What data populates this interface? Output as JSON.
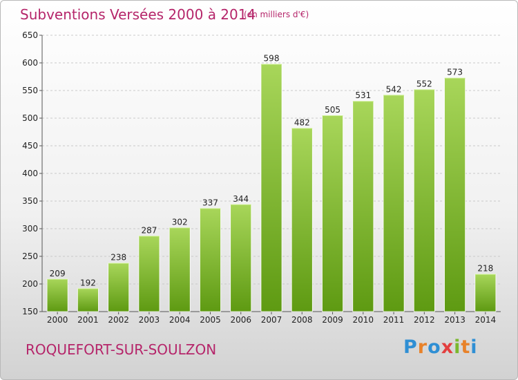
{
  "header": {
    "title": "Subventions Versées 2000 à 2014",
    "unit_note": "(en milliers d'€)"
  },
  "footer": {
    "town": "ROQUEFORT-SUR-SOULZON",
    "logo": {
      "letters": [
        "P",
        "r",
        "o",
        "x",
        "i",
        "t",
        "i"
      ],
      "colors": [
        "#2f8fd4",
        "#e8822a",
        "#2f8fd4",
        "#e33f3f",
        "#7bb82e",
        "#e8822a",
        "#2f8fd4"
      ]
    }
  },
  "chart_data": {
    "type": "bar",
    "title": "Subventions Versées 2000 à 2014",
    "xlabel": "",
    "ylabel": "",
    "categories": [
      "2000",
      "2001",
      "2002",
      "2003",
      "2004",
      "2005",
      "2006",
      "2007",
      "2008",
      "2009",
      "2010",
      "2011",
      "2012",
      "2013",
      "2014"
    ],
    "values": [
      209,
      192,
      238,
      287,
      302,
      337,
      344,
      598,
      482,
      505,
      531,
      542,
      552,
      573,
      218
    ],
    "ylim": [
      150,
      650
    ],
    "yticks": [
      150,
      200,
      250,
      300,
      350,
      400,
      450,
      500,
      550,
      600,
      650
    ],
    "grid": true,
    "colors": {
      "bar_top": "#a8d65a",
      "bar_bottom": "#5e9a12",
      "title": "#b5256a"
    }
  }
}
